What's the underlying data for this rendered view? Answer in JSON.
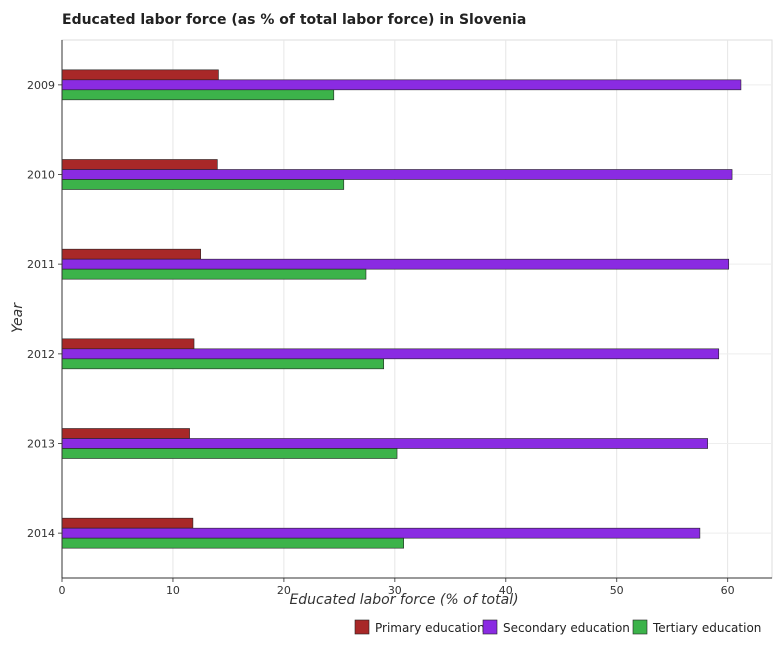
{
  "chart_data": {
    "type": "bar",
    "orientation": "horizontal",
    "title": "Educated labor force (as % of total labor force) in Slovenia",
    "xlabel": "Educated labor force (% of total)",
    "ylabel": "Year",
    "categories": [
      "2009",
      "2010",
      "2011",
      "2012",
      "2013",
      "2014"
    ],
    "xlim": [
      0,
      64
    ],
    "xticks": [
      0,
      10,
      20,
      30,
      40,
      50,
      60
    ],
    "grid": true,
    "legend_position": "bottom-right",
    "series": [
      {
        "name": "Primary education",
        "color": "#a82828",
        "values": [
          14.1,
          14.0,
          12.5,
          11.9,
          11.5,
          11.8
        ]
      },
      {
        "name": "Secondary education",
        "color": "#8a2be2",
        "values": [
          61.2,
          60.4,
          60.1,
          59.2,
          58.2,
          57.5
        ]
      },
      {
        "name": "Tertiary education",
        "color": "#3cb34a",
        "values": [
          24.5,
          25.4,
          27.4,
          29.0,
          30.2,
          30.8
        ]
      }
    ]
  }
}
